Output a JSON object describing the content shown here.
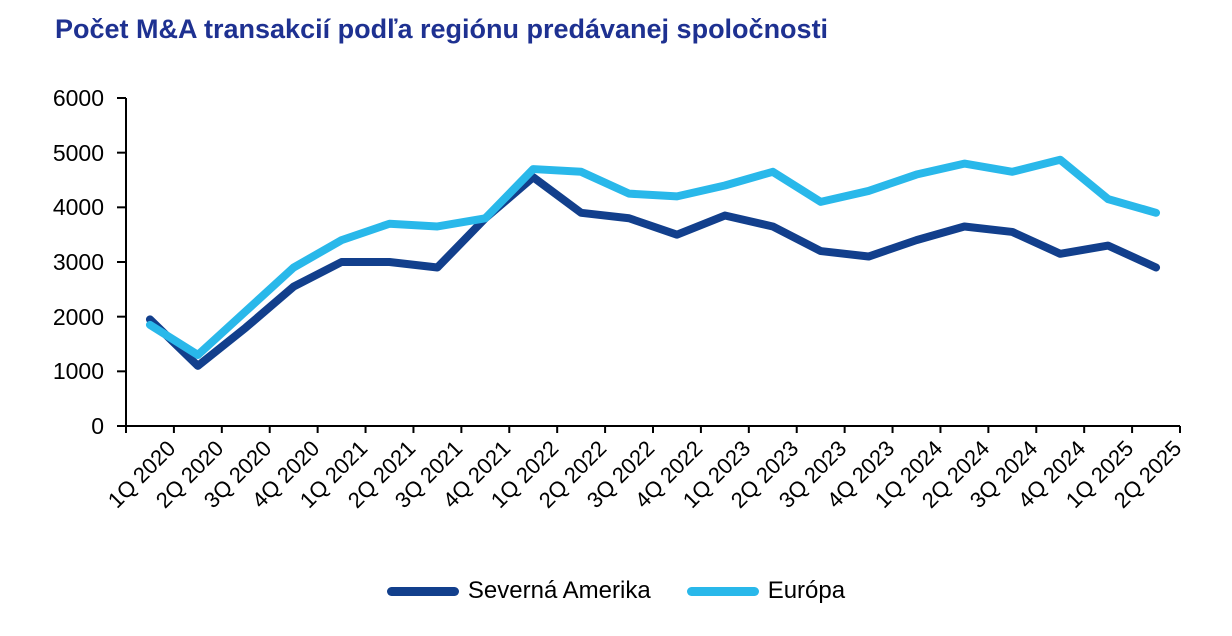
{
  "page": {
    "background": "#ffffff"
  },
  "chart_data": {
    "type": "line",
    "title": "Počet M&A transakcií podľa regiónu predávanej spoločnosti",
    "title_color": "#1e3191",
    "categories": [
      "1Q 2020",
      "2Q 2020",
      "3Q 2020",
      "4Q 2020",
      "1Q 2021",
      "2Q 2021",
      "3Q 2021",
      "4Q 2021",
      "1Q 2022",
      "2Q 2022",
      "3Q 2022",
      "4Q 2022",
      "1Q 2023",
      "2Q 2023",
      "3Q 2023",
      "4Q 2023",
      "1Q 2024",
      "2Q 2024",
      "3Q 2024",
      "4Q 2024",
      "1Q 2025",
      "2Q 2025"
    ],
    "series": [
      {
        "name": "Severná Amerika",
        "color": "#123f8c",
        "values": [
          1950,
          1100,
          1800,
          2550,
          3000,
          3000,
          2900,
          3800,
          4550,
          3900,
          3800,
          3500,
          3850,
          3650,
          3200,
          3100,
          3400,
          3650,
          3550,
          3150,
          3300,
          2900
        ]
      },
      {
        "name": "Európa",
        "color": "#29b8ea",
        "values": [
          1850,
          1300,
          2100,
          2900,
          3400,
          3700,
          3650,
          3800,
          4700,
          4650,
          4250,
          4200,
          4400,
          4650,
          4100,
          4300,
          4600,
          4800,
          4650,
          4870,
          4150,
          3900
        ]
      }
    ],
    "ylim": [
      0,
      6000
    ],
    "yticks": [
      0,
      1000,
      2000,
      3000,
      4000,
      5000,
      6000
    ],
    "grid": "off",
    "legend_position": "bottom",
    "axis_color": "#000000",
    "line_width": 8
  }
}
